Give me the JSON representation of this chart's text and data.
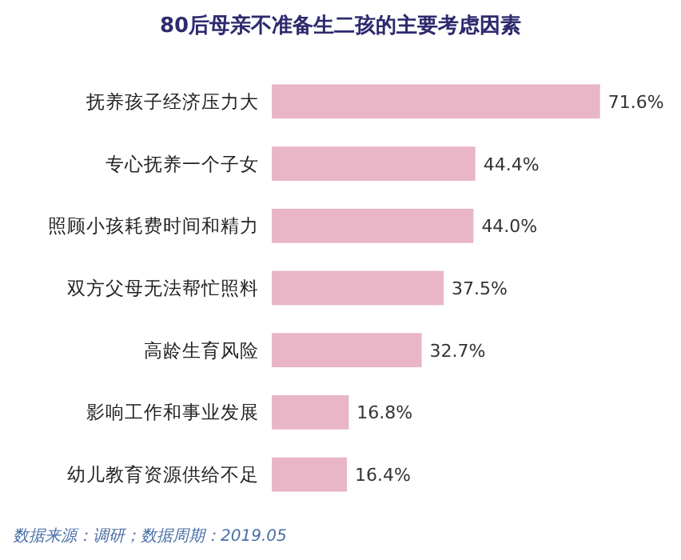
{
  "chart_data": {
    "type": "bar",
    "orientation": "horizontal",
    "title": "80后母亲不准备生二孩的主要考虑因素",
    "categories": [
      "抚养孩子经济压力大",
      "专心抚养一个子女",
      "照顾小孩耗费时间和精力",
      "双方父母无法帮忙照料",
      "高龄生育风险",
      "影响工作和事业发展",
      "幼儿教育资源供给不足"
    ],
    "values": [
      71.6,
      44.4,
      44.0,
      37.5,
      32.7,
      16.8,
      16.4
    ],
    "value_labels": [
      "71.6%",
      "44.4%",
      "44.0%",
      "37.5%",
      "32.7%",
      "16.8%",
      "16.4%"
    ],
    "color": "#e8b6c6",
    "annotations": [
      "数据来源：调研；数据周期：2019.05"
    ]
  }
}
